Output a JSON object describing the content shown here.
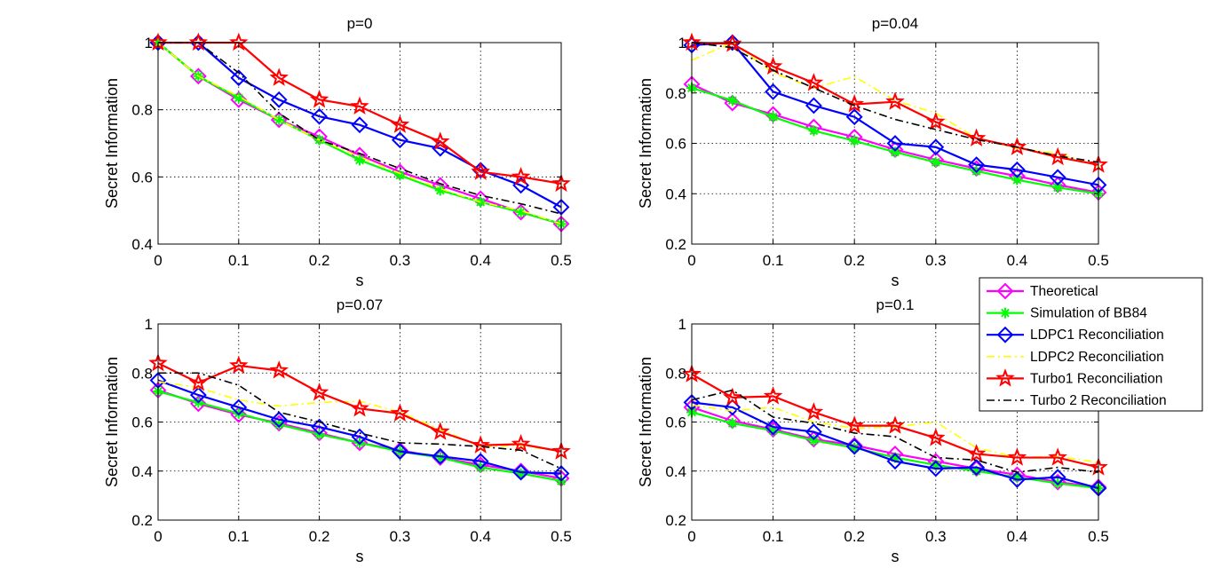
{
  "chart_data": {
    "type": "line",
    "x": [
      0,
      0.05,
      0.1,
      0.15,
      0.2,
      0.25,
      0.3,
      0.35,
      0.4,
      0.45,
      0.5
    ],
    "xlabel": "s",
    "ylabel": "Secret Information",
    "xlim": [
      0,
      0.5
    ],
    "xticks": [
      0,
      0.1,
      0.2,
      0.3,
      0.4,
      0.5
    ],
    "xtick_labels": [
      "0",
      "0.1",
      "0.2",
      "0.3",
      "0.4",
      "0.5"
    ],
    "grid": true,
    "legend_position": "right, between top-right and bottom-right panels",
    "legend": [
      {
        "name": "Theoretical",
        "color": "#ff00ff",
        "marker": "diamond",
        "style": "solid"
      },
      {
        "name": "Simulation of BB84",
        "color": "#00ff00",
        "marker": "asterisk",
        "style": "solid"
      },
      {
        "name": "LDPC1 Reconciliation",
        "color": "#0000ff",
        "marker": "diamond",
        "style": "solid"
      },
      {
        "name": "LDPC2 Reconciliation",
        "color": "#ffff00",
        "marker": "none",
        "style": "dashdot"
      },
      {
        "name": "Turbo1 Reconciliation",
        "color": "#ff0000",
        "marker": "star",
        "style": "solid"
      },
      {
        "name": "Turbo 2 Reconciliation",
        "color": "#000000",
        "marker": "none",
        "style": "dashdot"
      }
    ],
    "panels": [
      {
        "title": "p=0",
        "ylim": [
          0.4,
          1
        ],
        "yticks": [
          0.4,
          0.6,
          0.8,
          1
        ],
        "ytick_labels": [
          "0.4",
          "0.6",
          "0.8",
          "1"
        ],
        "series": [
          {
            "name": "Theoretical",
            "values": [
              1.0,
              0.9,
              0.83,
              0.77,
              0.72,
              0.665,
              0.615,
              0.575,
              0.535,
              0.495,
              0.46
            ]
          },
          {
            "name": "Simulation of BB84",
            "values": [
              1.0,
              0.9,
              0.835,
              0.77,
              0.71,
              0.65,
              0.605,
              0.56,
              0.525,
              0.495,
              0.46
            ]
          },
          {
            "name": "LDPC1 Reconciliation",
            "values": [
              1.0,
              1.0,
              0.895,
              0.83,
              0.78,
              0.755,
              0.71,
              0.685,
              0.62,
              0.575,
              0.51
            ]
          },
          {
            "name": "LDPC2 Reconciliation",
            "values": [
              1.0,
              0.9,
              0.84,
              0.77,
              0.71,
              0.66,
              0.61,
              0.565,
              0.525,
              0.5,
              0.46
            ]
          },
          {
            "name": "Turbo1 Reconciliation",
            "values": [
              1.0,
              1.0,
              1.0,
              0.895,
              0.83,
              0.81,
              0.755,
              0.705,
              0.615,
              0.6,
              0.58
            ]
          },
          {
            "name": "Turbo 2 Reconciliation",
            "values": [
              1.0,
              1.0,
              0.91,
              0.79,
              0.71,
              0.67,
              0.625,
              0.58,
              0.545,
              0.52,
              0.49
            ]
          }
        ]
      },
      {
        "title": "p=0.04",
        "ylim": [
          0.2,
          1
        ],
        "yticks": [
          0.2,
          0.4,
          0.6,
          0.8,
          1
        ],
        "ytick_labels": [
          "0.2",
          "0.4",
          "0.6",
          "0.8",
          "1"
        ],
        "series": [
          {
            "name": "Theoretical",
            "values": [
              0.835,
              0.76,
              0.715,
              0.665,
              0.625,
              0.575,
              0.535,
              0.5,
              0.47,
              0.435,
              0.405
            ]
          },
          {
            "name": "Simulation of BB84",
            "values": [
              0.82,
              0.77,
              0.705,
              0.65,
              0.61,
              0.565,
              0.525,
              0.49,
              0.455,
              0.425,
              0.4
            ]
          },
          {
            "name": "LDPC1 Reconciliation",
            "values": [
              0.99,
              1.0,
              0.805,
              0.75,
              0.705,
              0.6,
              0.585,
              0.515,
              0.495,
              0.465,
              0.435
            ]
          },
          {
            "name": "LDPC2 Reconciliation",
            "values": [
              0.93,
              1.0,
              0.88,
              0.82,
              0.865,
              0.77,
              0.72,
              0.62,
              0.58,
              0.56,
              0.51
            ]
          },
          {
            "name": "Turbo1 Reconciliation",
            "values": [
              1.0,
              0.995,
              0.905,
              0.84,
              0.755,
              0.765,
              0.685,
              0.62,
              0.585,
              0.545,
              0.515
            ]
          },
          {
            "name": "Turbo 2 Reconciliation",
            "values": [
              1.0,
              0.98,
              0.89,
              0.82,
              0.75,
              0.695,
              0.655,
              0.615,
              0.585,
              0.55,
              0.525
            ]
          }
        ]
      },
      {
        "title": "p=0.07",
        "ylim": [
          0.2,
          1
        ],
        "yticks": [
          0.2,
          0.4,
          0.6,
          0.8,
          1
        ],
        "ytick_labels": [
          "0.2",
          "0.4",
          "0.6",
          "0.8",
          "1"
        ],
        "series": [
          {
            "name": "Theoretical",
            "values": [
              0.73,
              0.675,
              0.63,
              0.595,
              0.555,
              0.515,
              0.485,
              0.455,
              0.425,
              0.4,
              0.37
            ]
          },
          {
            "name": "Simulation of BB84",
            "values": [
              0.725,
              0.68,
              0.635,
              0.59,
              0.55,
              0.515,
              0.48,
              0.455,
              0.415,
              0.39,
              0.36
            ]
          },
          {
            "name": "LDPC1 Reconciliation",
            "values": [
              0.77,
              0.71,
              0.66,
              0.61,
              0.58,
              0.54,
              0.48,
              0.46,
              0.44,
              0.395,
              0.39
            ]
          },
          {
            "name": "LDPC2 Reconciliation",
            "values": [
              0.765,
              0.74,
              0.69,
              0.665,
              0.68,
              0.685,
              0.64,
              0.57,
              0.5,
              0.505,
              0.48
            ]
          },
          {
            "name": "Turbo1 Reconciliation",
            "values": [
              0.84,
              0.76,
              0.83,
              0.81,
              0.72,
              0.655,
              0.635,
              0.56,
              0.505,
              0.51,
              0.48
            ]
          },
          {
            "name": "Turbo 2 Reconciliation",
            "values": [
              0.8,
              0.8,
              0.75,
              0.64,
              0.6,
              0.555,
              0.515,
              0.51,
              0.5,
              0.485,
              0.41
            ]
          }
        ]
      },
      {
        "title": "p=0.1",
        "ylim": [
          0.2,
          1
        ],
        "yticks": [
          0.2,
          0.4,
          0.6,
          0.8,
          1
        ],
        "ytick_labels": [
          "0.2",
          "0.4",
          "0.6",
          "0.8",
          "1"
        ],
        "series": [
          {
            "name": "Theoretical",
            "values": [
              0.66,
              0.605,
              0.57,
              0.53,
              0.505,
              0.47,
              0.44,
              0.41,
              0.385,
              0.355,
              0.335
            ]
          },
          {
            "name": "Simulation of BB84",
            "values": [
              0.64,
              0.595,
              0.565,
              0.525,
              0.495,
              0.455,
              0.425,
              0.4,
              0.375,
              0.35,
              0.33
            ]
          },
          {
            "name": "LDPC1 Reconciliation",
            "values": [
              0.68,
              0.66,
              0.58,
              0.56,
              0.5,
              0.44,
              0.41,
              0.415,
              0.365,
              0.375,
              0.33
            ]
          },
          {
            "name": "LDPC2 Reconciliation",
            "values": [
              0.67,
              0.645,
              0.66,
              0.6,
              0.575,
              0.58,
              0.6,
              0.495,
              0.455,
              0.46,
              0.435
            ]
          },
          {
            "name": "Turbo1 Reconciliation",
            "values": [
              0.795,
              0.7,
              0.705,
              0.64,
              0.585,
              0.585,
              0.535,
              0.47,
              0.455,
              0.455,
              0.415
            ]
          },
          {
            "name": "Turbo 2 Reconciliation",
            "values": [
              0.69,
              0.73,
              0.62,
              0.595,
              0.555,
              0.54,
              0.455,
              0.445,
              0.395,
              0.415,
              0.395
            ]
          }
        ]
      }
    ]
  }
}
